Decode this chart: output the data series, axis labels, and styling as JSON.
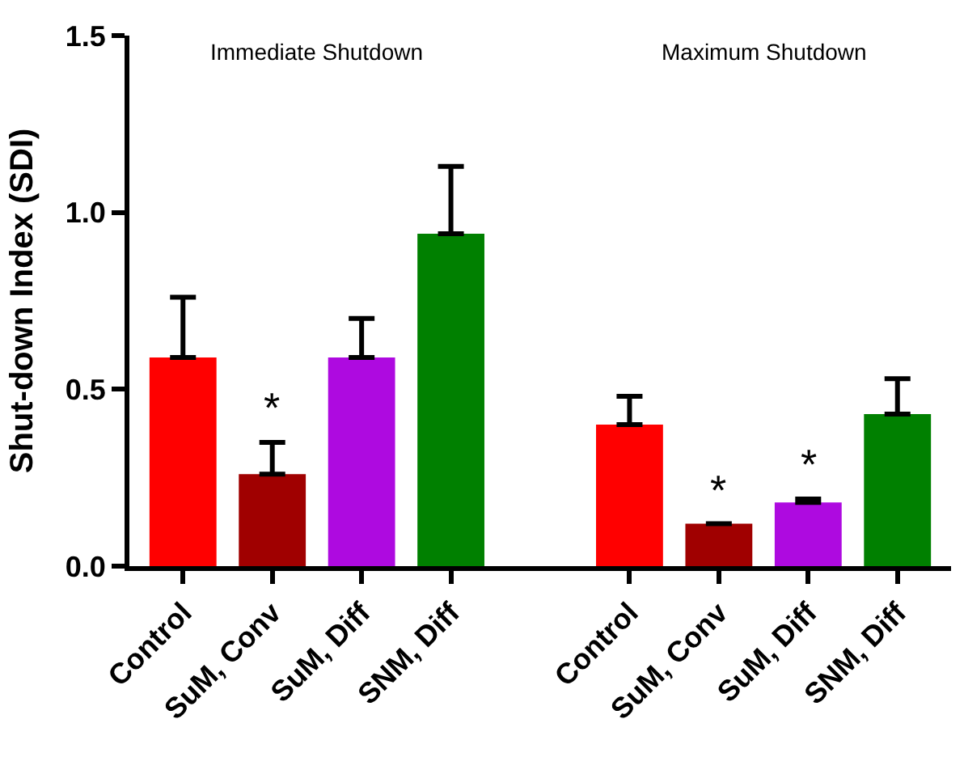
{
  "chart_data": {
    "type": "bar",
    "ylabel": "Shut-down Index (SDI)",
    "categories": [
      "Control",
      "SuM, Conv",
      "SuM, Diff",
      "SNM, Diff",
      null,
      "Control",
      "SuM, Conv",
      "SuM, Diff",
      "SNM, Diff"
    ],
    "values": [
      0.59,
      0.26,
      0.59,
      0.94,
      null,
      0.4,
      0.12,
      0.18,
      0.43
    ],
    "colors": [
      "#ff0000",
      "#a00000",
      "#ae0ae0",
      "#008000",
      null,
      "#ff0000",
      "#a00000",
      "#ae0ae0",
      "#008000"
    ],
    "errors": [
      [
        0.59,
        0.76
      ],
      [
        0.26,
        0.35
      ],
      [
        0.59,
        0.7
      ],
      [
        0.94,
        1.13
      ],
      null,
      [
        0.4,
        0.48
      ],
      [
        0.12,
        0.12
      ],
      [
        0.18,
        0.19
      ],
      [
        0.43,
        0.53
      ]
    ],
    "value_labels": [
      null,
      "*",
      null,
      null,
      null,
      null,
      "*",
      "*",
      null
    ],
    "annotations": [
      "Immediate Shutdown",
      "Maximum Shutdown"
    ],
    "ylim": [
      0,
      1.5
    ],
    "yticks": [
      {
        "value": 0,
        "label": "0.0"
      },
      {
        "value": 0.5,
        "label": "0.5"
      },
      {
        "value": 1,
        "label": "1.0"
      },
      {
        "value": 1.5,
        "label": "1.5"
      }
    ],
    "tick_labels": [
      "x",
      "y"
    ]
  }
}
